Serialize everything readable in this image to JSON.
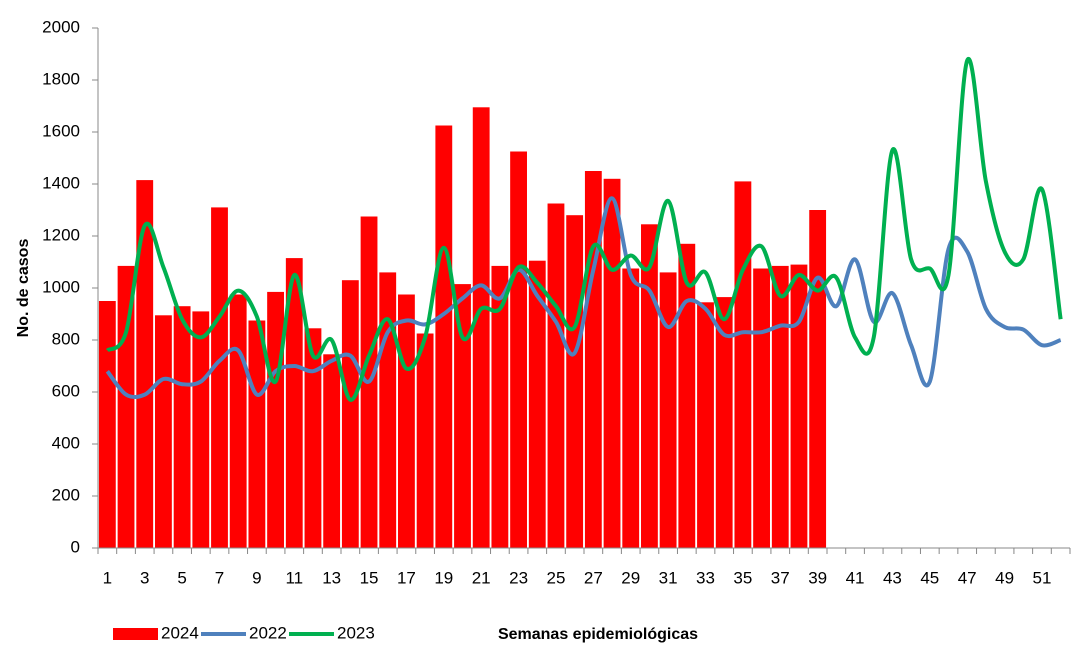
{
  "chart_data": {
    "type": "combo",
    "y_label": "No. de casos",
    "x_label": "Semanas epidemiológicas",
    "categories": [
      1,
      null,
      3,
      null,
      5,
      null,
      7,
      null,
      9,
      null,
      11,
      null,
      13,
      null,
      15,
      null,
      17,
      null,
      19,
      null,
      21,
      null,
      23,
      null,
      25,
      null,
      27,
      null,
      29,
      null,
      31,
      null,
      33,
      null,
      35,
      null,
      37,
      null,
      39,
      null,
      41,
      null,
      43,
      null,
      45,
      null,
      47,
      null,
      49,
      null,
      51,
      null
    ],
    "series": [
      {
        "name": "2024",
        "type": "bar",
        "color": "#ff0000",
        "values": [
          950,
          1085,
          1415,
          895,
          930,
          910,
          1310,
          975,
          875,
          985,
          1115,
          845,
          745,
          1030,
          1275,
          1060,
          975,
          825,
          1625,
          1015,
          1695,
          1085,
          1525,
          1105,
          1325,
          1280,
          1450,
          1420,
          1075,
          1245,
          1060,
          1170,
          945,
          965,
          1410,
          1075,
          1085,
          1090,
          1300,
          null,
          null,
          null,
          null,
          null,
          null,
          null,
          null,
          null,
          null,
          null,
          null,
          null
        ]
      },
      {
        "name": "2022",
        "type": "line",
        "color": "#4f81bd",
        "values": [
          680,
          590,
          590,
          650,
          630,
          640,
          720,
          760,
          590,
          680,
          700,
          680,
          720,
          740,
          640,
          830,
          875,
          860,
          900,
          960,
          1010,
          960,
          1070,
          970,
          870,
          750,
          1070,
          1345,
          1050,
          990,
          850,
          950,
          920,
          820,
          830,
          830,
          855,
          870,
          1040,
          930,
          1110,
          870,
          980,
          780,
          640,
          1150,
          1140,
          920,
          850,
          840,
          780,
          800
        ]
      },
      {
        "name": "2023",
        "type": "line",
        "color": "#00b050",
        "values": [
          760,
          830,
          1240,
          1080,
          880,
          810,
          890,
          990,
          890,
          640,
          1050,
          740,
          800,
          570,
          740,
          880,
          690,
          810,
          1155,
          810,
          920,
          920,
          1080,
          1020,
          930,
          850,
          1160,
          1070,
          1125,
          1080,
          1335,
          1020,
          1060,
          880,
          1070,
          1160,
          970,
          1050,
          990,
          1040,
          810,
          810,
          1530,
          1110,
          1075,
          1050,
          1875,
          1410,
          1140,
          1110,
          1380,
          880
        ]
      }
    ],
    "ylim": [
      0,
      2000
    ],
    "yticks": [
      0,
      200,
      400,
      600,
      800,
      1000,
      1200,
      1400,
      1600,
      1800,
      2000
    ],
    "grid": false,
    "legend": "bottom-left"
  }
}
